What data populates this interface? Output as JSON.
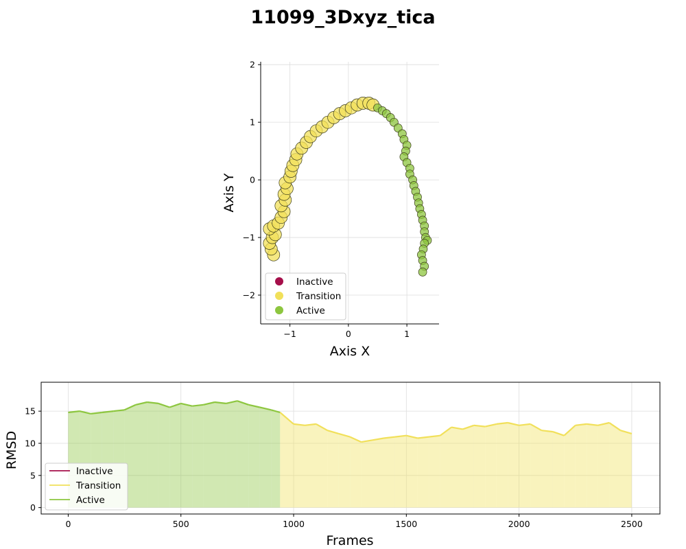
{
  "figure_title": "11099_3Dxyz_tica",
  "colors": {
    "inactive": "#a50f4a",
    "transition": "#f1e05a",
    "active": "#8dc63f"
  },
  "chart_data": [
    {
      "type": "scatter",
      "xlabel": "Axis X",
      "ylabel": "Axis Y",
      "xlim": [
        -1.5,
        1.55
      ],
      "ylim": [
        -2.5,
        2.05
      ],
      "xticks": [
        -1,
        0,
        1
      ],
      "yticks": [
        -2,
        -1,
        0,
        1,
        2
      ],
      "xtick_labels": [
        "−1",
        "0",
        "1"
      ],
      "ytick_labels": [
        "−2",
        "−1",
        "0",
        "1",
        "2"
      ],
      "grid": true,
      "legend": {
        "location": "lower-left",
        "entries": [
          "Inactive",
          "Transition",
          "Active"
        ]
      },
      "series": [
        {
          "name": "Transition",
          "color": "#f1e05a",
          "points": [
            [
              -1.28,
              -1.3
            ],
            [
              -1.32,
              -1.2
            ],
            [
              -1.35,
              -1.1
            ],
            [
              -1.3,
              -1.0
            ],
            [
              -1.25,
              -0.95
            ],
            [
              -1.35,
              -0.85
            ],
            [
              -1.28,
              -0.8
            ],
            [
              -1.2,
              -0.75
            ],
            [
              -1.15,
              -0.65
            ],
            [
              -1.1,
              -0.55
            ],
            [
              -1.15,
              -0.45
            ],
            [
              -1.08,
              -0.35
            ],
            [
              -1.1,
              -0.25
            ],
            [
              -1.05,
              -0.15
            ],
            [
              -1.08,
              -0.05
            ],
            [
              -1.0,
              0.05
            ],
            [
              -0.98,
              0.15
            ],
            [
              -0.95,
              0.25
            ],
            [
              -0.9,
              0.35
            ],
            [
              -0.88,
              0.45
            ],
            [
              -0.8,
              0.55
            ],
            [
              -0.72,
              0.65
            ],
            [
              -0.65,
              0.75
            ],
            [
              -0.55,
              0.85
            ],
            [
              -0.45,
              0.92
            ],
            [
              -0.35,
              1.0
            ],
            [
              -0.25,
              1.08
            ],
            [
              -0.15,
              1.15
            ],
            [
              -0.05,
              1.2
            ],
            [
              0.05,
              1.25
            ],
            [
              0.15,
              1.3
            ],
            [
              0.25,
              1.33
            ],
            [
              0.35,
              1.33
            ],
            [
              0.42,
              1.3
            ]
          ]
        },
        {
          "name": "Active",
          "color": "#8dc63f",
          "points": [
            [
              0.5,
              1.25
            ],
            [
              0.58,
              1.2
            ],
            [
              0.65,
              1.15
            ],
            [
              0.72,
              1.08
            ],
            [
              0.78,
              1.0
            ],
            [
              0.85,
              0.9
            ],
            [
              0.92,
              0.8
            ],
            [
              0.95,
              0.7
            ],
            [
              1.0,
              0.6
            ],
            [
              0.98,
              0.5
            ],
            [
              0.95,
              0.4
            ],
            [
              1.0,
              0.3
            ],
            [
              1.05,
              0.2
            ],
            [
              1.05,
              0.1
            ],
            [
              1.1,
              0.0
            ],
            [
              1.12,
              -0.1
            ],
            [
              1.15,
              -0.2
            ],
            [
              1.18,
              -0.3
            ],
            [
              1.2,
              -0.4
            ],
            [
              1.22,
              -0.5
            ],
            [
              1.25,
              -0.6
            ],
            [
              1.27,
              -0.7
            ],
            [
              1.3,
              -0.8
            ],
            [
              1.3,
              -0.9
            ],
            [
              1.32,
              -1.0
            ],
            [
              1.35,
              -1.05
            ],
            [
              1.3,
              -1.1
            ],
            [
              1.28,
              -1.2
            ],
            [
              1.25,
              -1.3
            ],
            [
              1.27,
              -1.4
            ],
            [
              1.3,
              -1.5
            ],
            [
              1.27,
              -1.6
            ]
          ]
        }
      ]
    },
    {
      "type": "line",
      "xlabel": "Frames",
      "ylabel": "RMSD",
      "xlim": [
        -120,
        2625
      ],
      "ylim": [
        -1,
        19.5
      ],
      "xticks": [
        0,
        500,
        1000,
        1500,
        2000,
        2500
      ],
      "yticks": [
        0,
        5,
        10,
        15
      ],
      "grid": true,
      "legend": {
        "location": "lower-left",
        "entries": [
          "Inactive",
          "Transition",
          "Active"
        ]
      },
      "series": [
        {
          "name": "RMSD",
          "x": [
            0,
            50,
            100,
            150,
            200,
            250,
            300,
            350,
            400,
            450,
            500,
            550,
            600,
            650,
            700,
            750,
            800,
            850,
            900,
            940,
            1000,
            1050,
            1100,
            1150,
            1200,
            1250,
            1300,
            1350,
            1400,
            1450,
            1500,
            1550,
            1600,
            1650,
            1700,
            1750,
            1800,
            1850,
            1900,
            1950,
            2000,
            2050,
            2100,
            2150,
            2200,
            2250,
            2300,
            2350,
            2400,
            2450,
            2500
          ],
          "values": [
            14.8,
            15.0,
            14.6,
            14.8,
            15.0,
            15.2,
            16.0,
            16.4,
            16.2,
            15.6,
            16.2,
            15.8,
            16.0,
            16.4,
            16.2,
            16.6,
            16.0,
            15.6,
            15.2,
            14.8,
            13.0,
            12.8,
            13.0,
            12.0,
            11.5,
            11.0,
            10.2,
            10.5,
            10.8,
            11.0,
            11.2,
            10.8,
            11.0,
            11.2,
            12.5,
            12.2,
            12.8,
            12.6,
            13.0,
            13.2,
            12.8,
            13.0,
            12.0,
            11.8,
            11.2,
            12.8,
            13.0,
            12.8,
            13.2,
            12.0,
            11.5
          ],
          "state": [
            "Active",
            "Active",
            "Active",
            "Active",
            "Active",
            "Active",
            "Active",
            "Active",
            "Active",
            "Active",
            "Active",
            "Active",
            "Active",
            "Active",
            "Active",
            "Active",
            "Active",
            "Active",
            "Active",
            "Active",
            "Transition",
            "Transition",
            "Transition",
            "Transition",
            "Transition",
            "Transition",
            "Transition",
            "Transition",
            "Transition",
            "Transition",
            "Transition",
            "Transition",
            "Transition",
            "Transition",
            "Transition",
            "Transition",
            "Transition",
            "Transition",
            "Transition",
            "Transition",
            "Transition",
            "Transition",
            "Transition",
            "Transition",
            "Transition",
            "Transition",
            "Transition",
            "Transition",
            "Transition",
            "Transition",
            "Transition"
          ]
        }
      ]
    }
  ]
}
